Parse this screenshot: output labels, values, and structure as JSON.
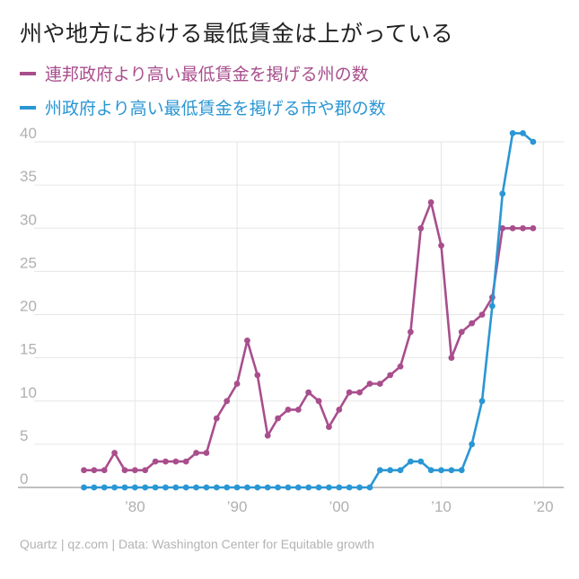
{
  "title": "州や地方における最低賃金は上がっている",
  "source": "Quartz | qz.com | Data: Washington Center for Equitable growth",
  "chart_data": {
    "type": "line",
    "title": "州や地方における最低賃金は上がっている",
    "xlabel": "",
    "ylabel": "",
    "xlim": [
      1971,
      2022
    ],
    "ylim": [
      0,
      40
    ],
    "grid": true,
    "legend_placement": "top-left",
    "x_ticks": [
      1980,
      1990,
      2000,
      2010,
      2020
    ],
    "x_tick_labels": [
      "’80",
      "’90",
      "’00",
      "’10",
      "’20"
    ],
    "y_ticks": [
      0,
      5,
      10,
      15,
      20,
      25,
      30,
      35,
      40
    ],
    "y_tick_labels": [
      "0",
      "5",
      "10",
      "15",
      "20",
      "25",
      "30",
      "35",
      "40"
    ],
    "series": [
      {
        "name": "連邦政府より高い最低賃金を掲げる州の数",
        "color": "#a94e8d",
        "x": [
          1975,
          1976,
          1977,
          1978,
          1979,
          1980,
          1981,
          1982,
          1983,
          1984,
          1985,
          1986,
          1987,
          1988,
          1989,
          1990,
          1991,
          1992,
          1993,
          1994,
          1995,
          1996,
          1997,
          1998,
          1999,
          2000,
          2001,
          2002,
          2003,
          2004,
          2005,
          2006,
          2007,
          2008,
          2009,
          2010,
          2011,
          2012,
          2013,
          2014,
          2015,
          2016,
          2017,
          2018,
          2019
        ],
        "values": [
          2,
          2,
          2,
          4,
          2,
          2,
          2,
          3,
          3,
          3,
          3,
          4,
          4,
          8,
          10,
          12,
          17,
          13,
          6,
          8,
          9,
          9,
          11,
          10,
          7,
          9,
          11,
          11,
          12,
          12,
          13,
          14,
          18,
          30,
          33,
          28,
          15,
          18,
          19,
          20,
          22,
          30,
          30,
          30,
          30
        ]
      },
      {
        "name": "州政府より高い最低賃金を掲げる市や郡の数",
        "color": "#2a96d4",
        "x": [
          1975,
          1976,
          1977,
          1978,
          1979,
          1980,
          1981,
          1982,
          1983,
          1984,
          1985,
          1986,
          1987,
          1988,
          1989,
          1990,
          1991,
          1992,
          1993,
          1994,
          1995,
          1996,
          1997,
          1998,
          1999,
          2000,
          2001,
          2002,
          2003,
          2004,
          2005,
          2006,
          2007,
          2008,
          2009,
          2010,
          2011,
          2012,
          2013,
          2014,
          2015,
          2016,
          2017,
          2018,
          2019
        ],
        "values": [
          0,
          0,
          0,
          0,
          0,
          0,
          0,
          0,
          0,
          0,
          0,
          0,
          0,
          0,
          0,
          0,
          0,
          0,
          0,
          0,
          0,
          0,
          0,
          0,
          0,
          0,
          0,
          0,
          0,
          2,
          2,
          2,
          3,
          3,
          2,
          2,
          2,
          2,
          5,
          10,
          21,
          34,
          41,
          41,
          40
        ]
      }
    ]
  }
}
